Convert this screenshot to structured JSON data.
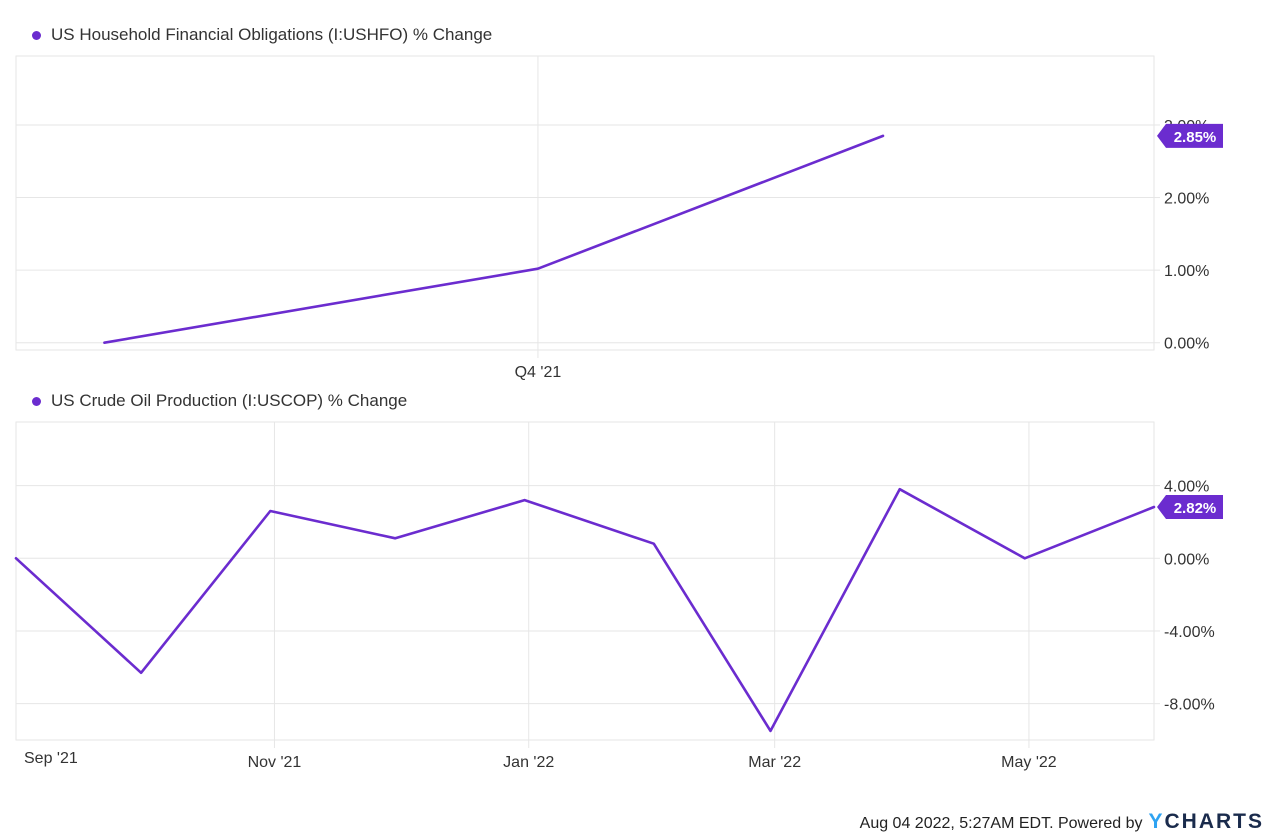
{
  "colors": {
    "series": "#6b2ccf",
    "grid": "#e6e6e6",
    "axis": "#333333",
    "badge_text": "#ffffff"
  },
  "chart_data": [
    {
      "type": "line",
      "title": "US Household Financial Obligations (I:USHFO) % Change",
      "x_ticks": [
        "Q4 '21"
      ],
      "y_ticks": [
        "0.00%",
        "1.00%",
        "2.00%",
        "3.00%"
      ],
      "ylim": [
        -0.1,
        3.95
      ],
      "series": [
        {
          "name": "US Household Financial Obligations (I:USHFO) % Change",
          "x": [
            "2021-08-01",
            "2021-12-31",
            "2022-05-01"
          ],
          "values": [
            0.0,
            1.02,
            2.85
          ]
        }
      ],
      "last_value_label": "2.85%"
    },
    {
      "type": "line",
      "title": "US Crude Oil Production (I:USCOP) % Change",
      "x_ticks": [
        "Sep '21",
        "Nov '21",
        "Jan '22",
        "Mar '22",
        "May '22"
      ],
      "y_ticks": [
        "4.00%",
        "0.00%",
        "-4.00%",
        "-8.00%"
      ],
      "ylim": [
        -10.0,
        7.5
      ],
      "series": [
        {
          "name": "US Crude Oil Production (I:USCOP) % Change",
          "x": [
            "2021-08-31",
            "2021-09-30",
            "2021-10-31",
            "2021-11-30",
            "2021-12-31",
            "2022-01-31",
            "2022-02-28",
            "2022-03-31",
            "2022-04-30",
            "2022-05-31"
          ],
          "values": [
            0.0,
            -6.3,
            2.6,
            1.1,
            3.2,
            0.8,
            -9.5,
            3.8,
            0.0,
            2.82
          ]
        }
      ],
      "last_value_label": "2.82%"
    }
  ],
  "footer": {
    "text": "Aug 04 2022, 5:27AM EDT. Powered by",
    "logo_y": "Y",
    "logo_rest": "CHARTS"
  }
}
